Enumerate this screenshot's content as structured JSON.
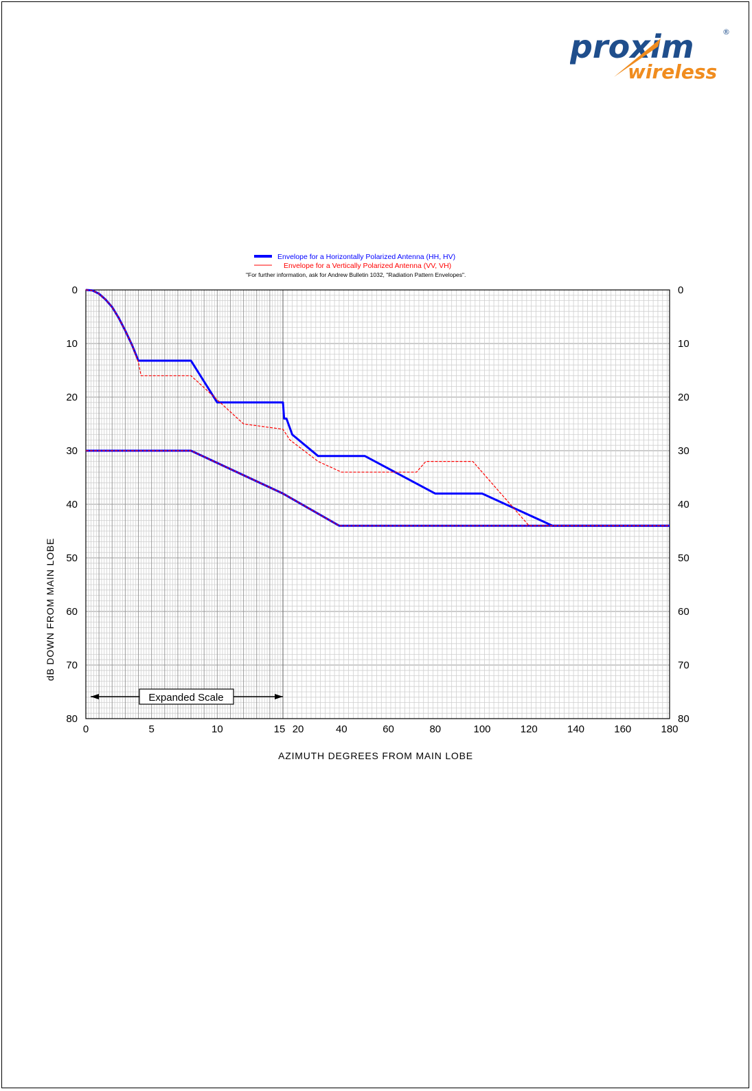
{
  "logo": {
    "brand": "proxim",
    "sub": "wireless",
    "reg": "®"
  },
  "colors": {
    "horizontal": "#0000ff",
    "vertical": "#ff0000",
    "logo_blue": "#1f4e8c",
    "logo_orange": "#f08c1e"
  },
  "chart_data": {
    "type": "line",
    "title": "",
    "legend": [
      "Envelope for a Horizontally Polarized Antenna (HH, HV)",
      "Envelope for a Vertically Polarized Antenna (VV, VH)"
    ],
    "note": "\"For further information, ask for Andrew Bulletin 1032, \"Radiation Pattern Envelopes\".",
    "xlabel": "AZIMUTH DEGREES FROM MAIN LOBE",
    "ylabel": "dB DOWN FROM MAIN LOBE",
    "expanded_scale_label": "Expanded Scale",
    "x_ticks": [
      "0",
      "5",
      "10",
      "15",
      "20",
      "40",
      "60",
      "80",
      "100",
      "120",
      "140",
      "160",
      "180"
    ],
    "y_ticks": [
      "0",
      "10",
      "20",
      "30",
      "40",
      "50",
      "60",
      "70",
      "80"
    ],
    "xlim": [
      0,
      180
    ],
    "ylim": [
      0,
      80
    ],
    "y_inverted": true,
    "x_scale": "expanded 0-15 degrees, compressed 15-180 degrees",
    "grid": true,
    "series": [
      {
        "name": "HH",
        "color": "#0000ff",
        "points": [
          [
            0,
            0
          ],
          [
            0.5,
            0.1
          ],
          [
            1,
            0.7
          ],
          [
            1.5,
            1.8
          ],
          [
            2,
            3.2
          ],
          [
            2.5,
            5.2
          ],
          [
            3,
            7.6
          ],
          [
            3.5,
            10.2
          ],
          [
            4,
            13.2
          ],
          [
            6,
            13.2
          ],
          [
            8,
            13.2
          ],
          [
            10,
            21
          ],
          [
            15,
            21
          ],
          [
            15.5,
            24
          ],
          [
            16.5,
            24
          ],
          [
            19,
            27
          ],
          [
            30,
            31
          ],
          [
            38,
            31
          ],
          [
            50,
            31
          ],
          [
            80,
            38
          ],
          [
            100,
            38
          ],
          [
            130,
            44
          ],
          [
            180,
            44
          ]
        ]
      },
      {
        "name": "HV",
        "color": "#0000ff",
        "points": [
          [
            0,
            30
          ],
          [
            8,
            30
          ],
          [
            15,
            38
          ],
          [
            39,
            44
          ],
          [
            180,
            44
          ]
        ]
      },
      {
        "name": "VV",
        "color": "#ff0000",
        "points": [
          [
            0,
            0
          ],
          [
            0.5,
            0.1
          ],
          [
            1,
            0.7
          ],
          [
            1.5,
            1.8
          ],
          [
            2,
            3.2
          ],
          [
            2.5,
            5.2
          ],
          [
            3,
            7.6
          ],
          [
            3.5,
            10.2
          ],
          [
            4,
            13.5
          ],
          [
            4.2,
            16
          ],
          [
            8,
            16
          ],
          [
            10,
            20.5
          ],
          [
            12,
            25
          ],
          [
            15,
            26
          ],
          [
            18,
            28
          ],
          [
            30,
            32
          ],
          [
            40,
            34
          ],
          [
            65,
            34
          ],
          [
            72,
            34
          ],
          [
            76,
            32
          ],
          [
            96,
            32
          ],
          [
            120,
            44
          ],
          [
            180,
            44
          ]
        ]
      },
      {
        "name": "VH",
        "color": "#ff0000",
        "points": [
          [
            0,
            30
          ],
          [
            8,
            30
          ],
          [
            15,
            38
          ],
          [
            39,
            44
          ],
          [
            180,
            44
          ]
        ]
      }
    ]
  }
}
